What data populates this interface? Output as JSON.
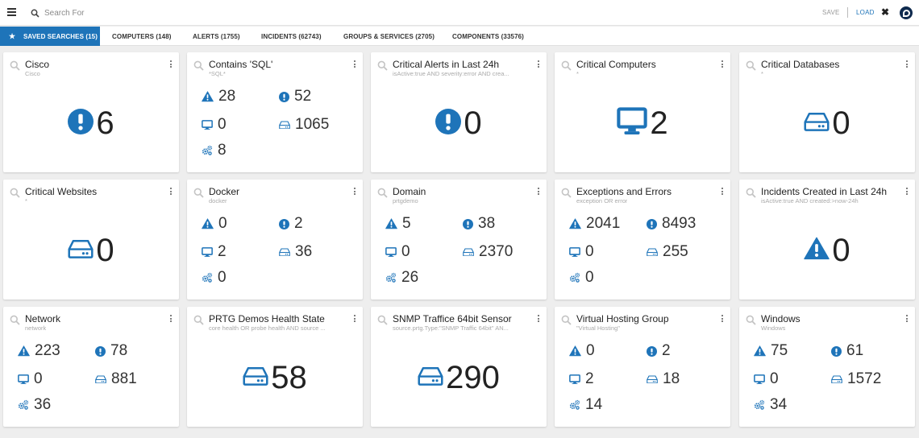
{
  "topbar": {
    "search_placeholder": "Search For",
    "save_label": "SAVE",
    "load_label": "LOAD",
    "close_label": "✖"
  },
  "tabs": [
    {
      "label": "SAVED SEARCHES (15)"
    },
    {
      "label": "COMPUTERS (148)"
    },
    {
      "label": "ALERTS (1755)"
    },
    {
      "label": "INCIDENTS (62743)"
    },
    {
      "label": "GROUPS & SERVICES (2705)"
    },
    {
      "label": "COMPONENTS (33576)"
    }
  ],
  "colors": {
    "accent": "#1e74b9",
    "icon": "#1e74b9",
    "page_bg": "#eeeeee"
  },
  "cards": [
    {
      "title": "Cisco",
      "subtitle": "Cisco",
      "kind": "big",
      "icon": "alert-circle-icon",
      "value": "6"
    },
    {
      "title": "Contains 'SQL'",
      "subtitle": "*SQL*",
      "kind": "stats",
      "alerts": "28",
      "incidents": "52",
      "computers": "0",
      "components": "1065",
      "services": "8"
    },
    {
      "title": "Critical Alerts in Last 24h",
      "subtitle": "isActive:true AND severity:error AND crea...",
      "kind": "big",
      "icon": "alert-circle-icon",
      "value": "0"
    },
    {
      "title": "Critical Computers",
      "subtitle": "*",
      "kind": "big",
      "icon": "monitor-icon",
      "value": "2"
    },
    {
      "title": "Critical Databases",
      "subtitle": "*",
      "kind": "big",
      "icon": "drive-icon",
      "value": "0"
    },
    {
      "title": "Critical Websites",
      "subtitle": "*",
      "kind": "big",
      "icon": "drive-icon",
      "value": "0"
    },
    {
      "title": "Docker",
      "subtitle": "docker",
      "kind": "stats",
      "alerts": "0",
      "incidents": "2",
      "computers": "2",
      "components": "36",
      "services": "0"
    },
    {
      "title": "Domain",
      "subtitle": "prtgdemo",
      "kind": "stats",
      "alerts": "5",
      "incidents": "38",
      "computers": "0",
      "components": "2370",
      "services": "26"
    },
    {
      "title": "Exceptions and Errors",
      "subtitle": "exception OR error",
      "kind": "stats",
      "alerts": "2041",
      "incidents": "8493",
      "computers": "0",
      "components": "255",
      "services": "0"
    },
    {
      "title": "Incidents Created in Last 24h",
      "subtitle": "isActive:true AND created:>now-24h",
      "kind": "big",
      "icon": "warning-triangle-icon",
      "value": "0"
    },
    {
      "title": "Network",
      "subtitle": "network",
      "kind": "stats",
      "alerts": "223",
      "incidents": "78",
      "computers": "0",
      "components": "881",
      "services": "36"
    },
    {
      "title": "PRTG Demos Health State",
      "subtitle": "core health OR probe health AND source ...",
      "kind": "big",
      "icon": "drive-icon",
      "value": "58"
    },
    {
      "title": "SNMP Traffice 64bit Sensor",
      "subtitle": "source.prtg.Type:\"SNMP Traffic 64bit\" AN...",
      "kind": "big",
      "icon": "drive-icon",
      "value": "290"
    },
    {
      "title": "Virtual Hosting Group",
      "subtitle": "\"Virtual Hosting\"",
      "kind": "stats",
      "alerts": "0",
      "incidents": "2",
      "computers": "2",
      "components": "18",
      "services": "14"
    },
    {
      "title": "Windows",
      "subtitle": "Windows",
      "kind": "stats",
      "alerts": "75",
      "incidents": "61",
      "computers": "0",
      "components": "1572",
      "services": "34"
    }
  ]
}
